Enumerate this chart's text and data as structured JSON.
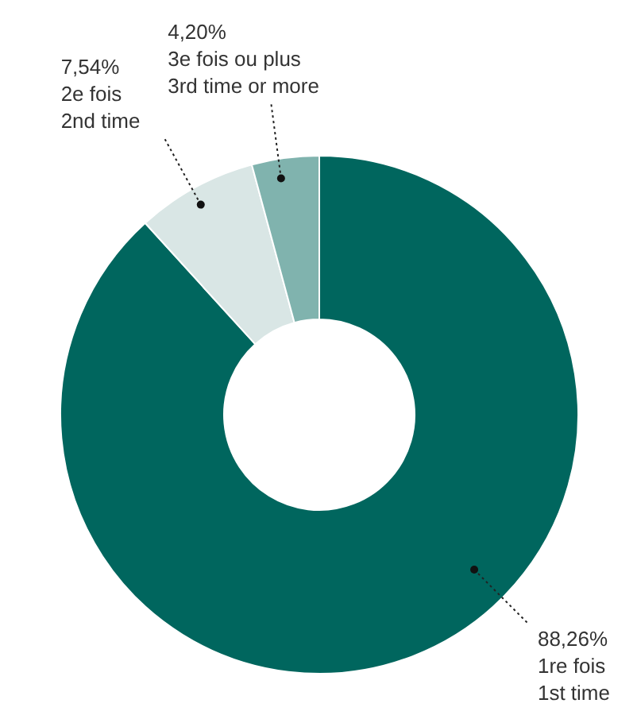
{
  "chart_data": {
    "type": "donut",
    "categories": [
      "1re fois\n1st time",
      "2e fois\n2nd time",
      "3e fois ou plus\n3rd time or more"
    ],
    "values": [
      88.26,
      7.54,
      4.2
    ],
    "colors": [
      "#00665e",
      "#d9e6e5",
      "#80b3ae"
    ],
    "value_labels": [
      "88,26%",
      "7,54%",
      "4,20%"
    ]
  }
}
